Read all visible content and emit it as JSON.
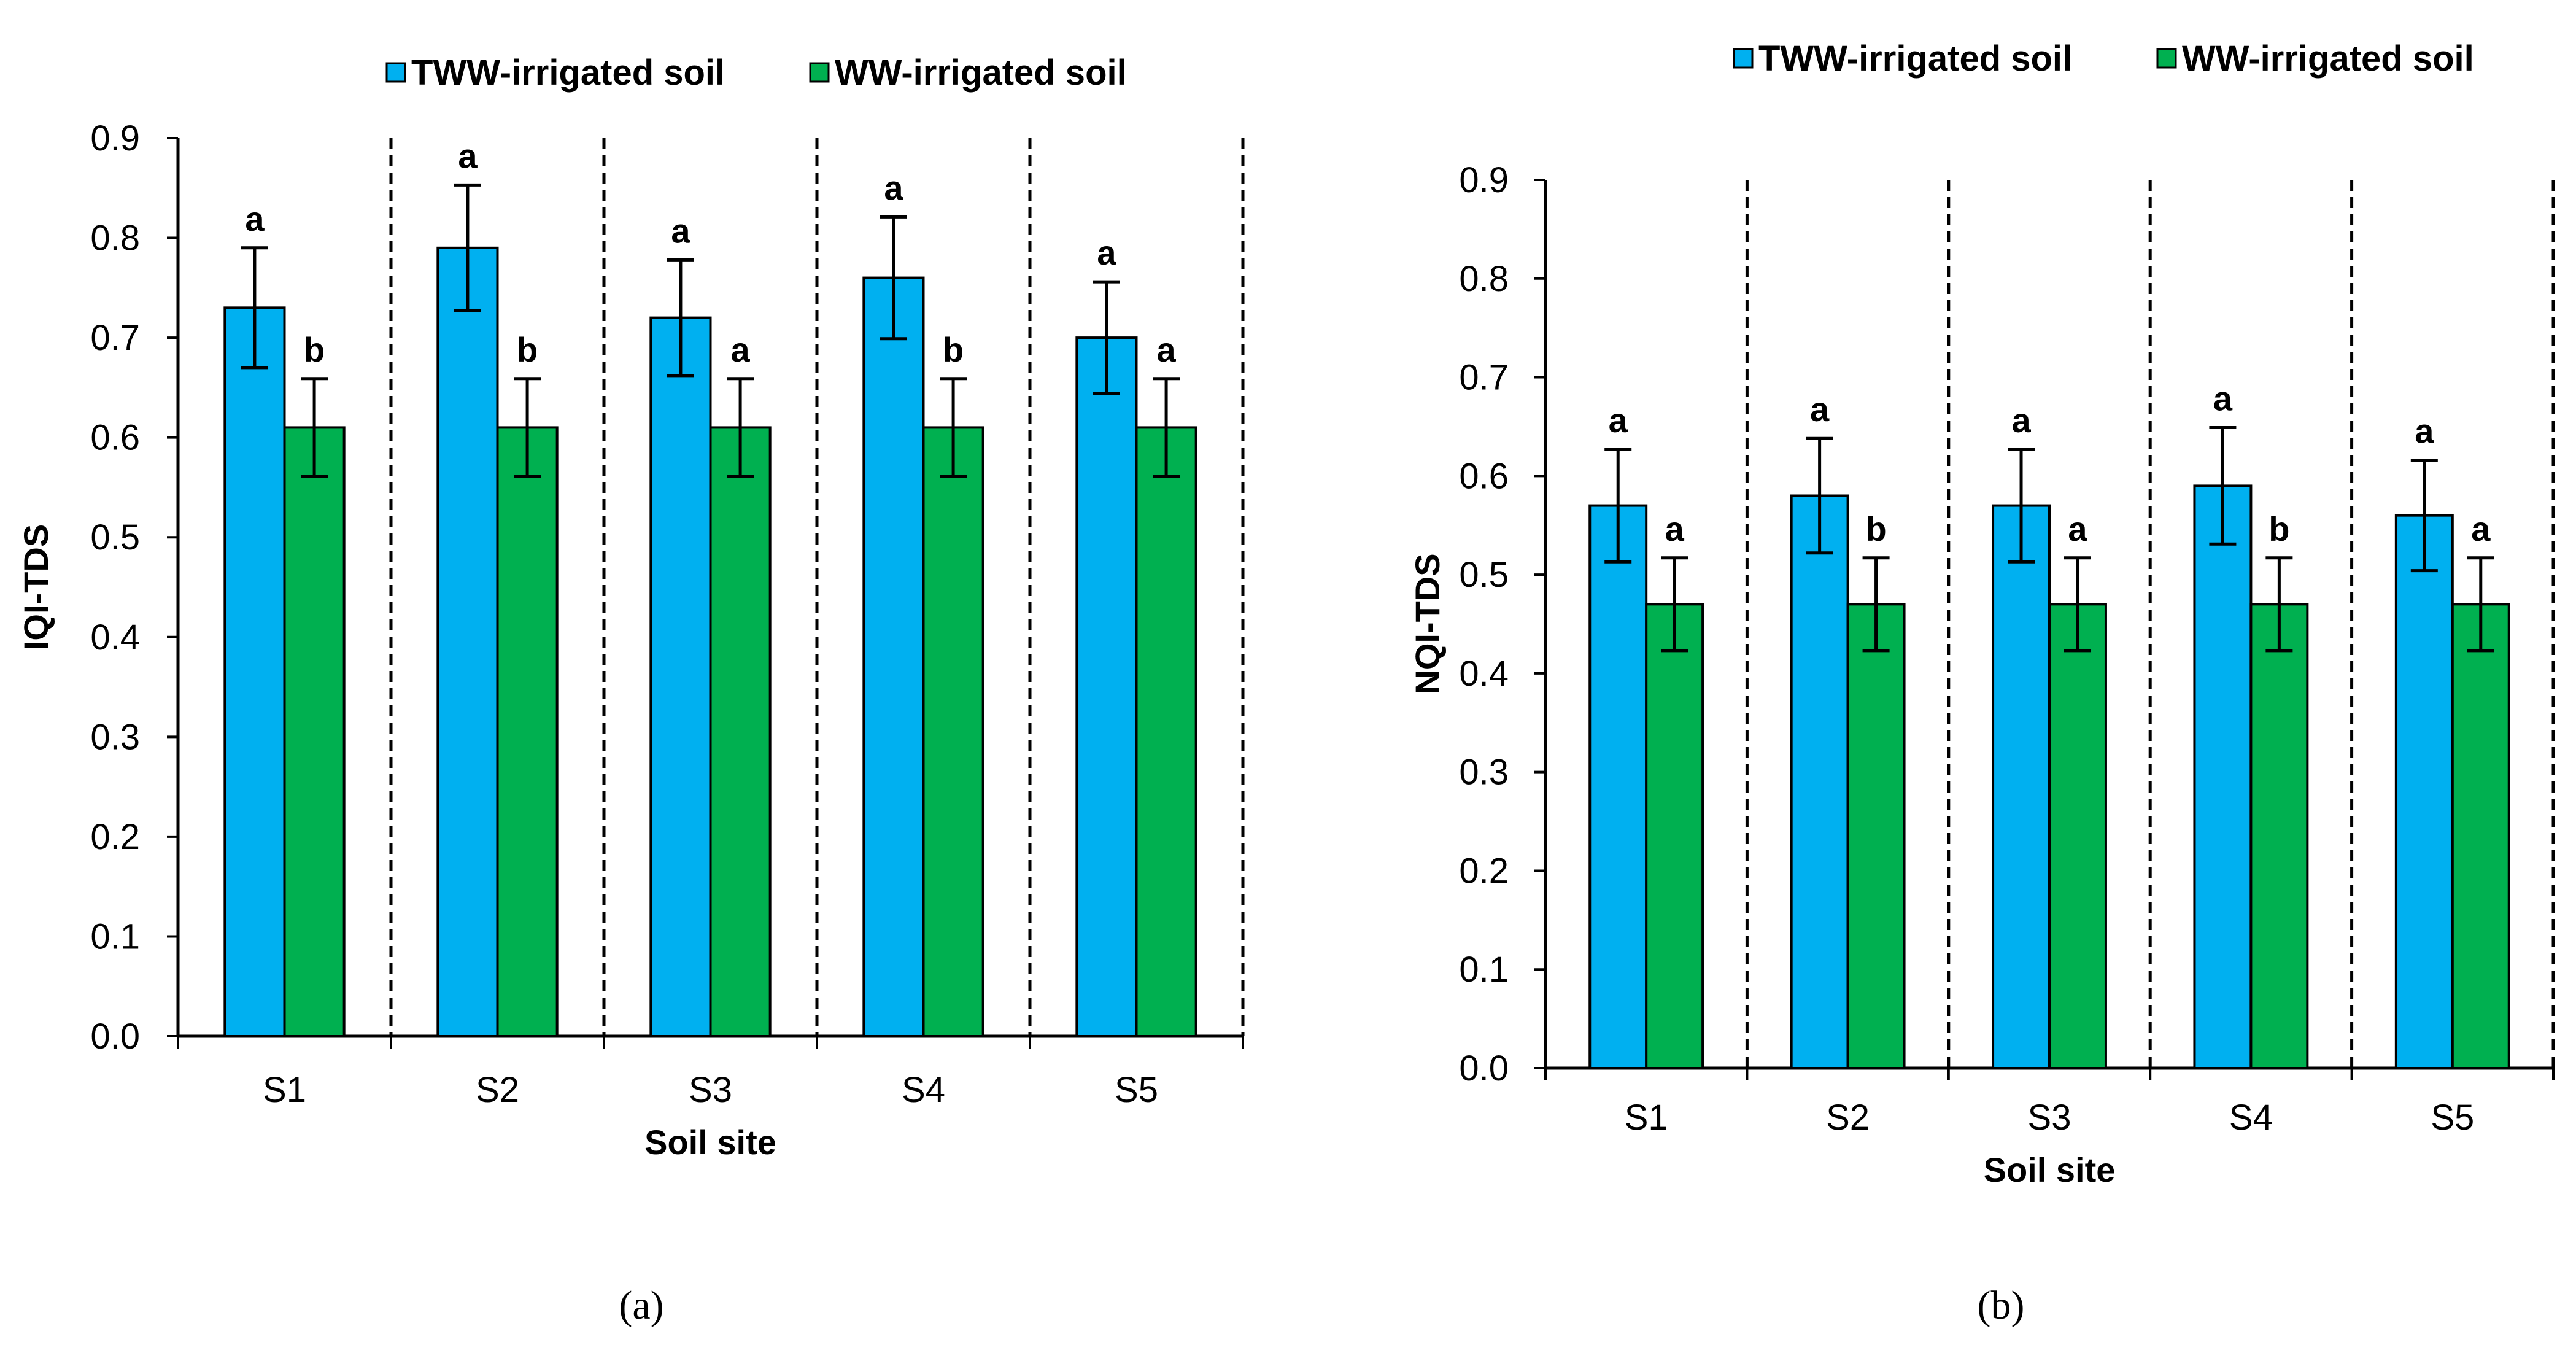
{
  "colors": {
    "tww": "#00B0F0",
    "ww": "#00B050",
    "axis": "#000000"
  },
  "chart_data": [
    {
      "type": "bar",
      "panel": "(a)",
      "title": "",
      "xlabel": "Soil site",
      "ylabel": "IQI-TDS",
      "ylim": [
        0,
        0.9
      ],
      "yticks": [
        "0.0",
        "0.1",
        "0.2",
        "0.3",
        "0.4",
        "0.5",
        "0.6",
        "0.7",
        "0.8",
        "0.9"
      ],
      "categories": [
        "S1",
        "S2",
        "S3",
        "S4",
        "S5"
      ],
      "legend": [
        "TWW-irrigated soil",
        "WW-irrigated soil"
      ],
      "legend_position": "top",
      "series": [
        {
          "name": "TWW-irrigated soil",
          "values": [
            0.73,
            0.79,
            0.72,
            0.76,
            0.7
          ],
          "errors": [
            0.06,
            0.063,
            0.058,
            0.061,
            0.056
          ],
          "letters": [
            "a",
            "a",
            "a",
            "a",
            "a"
          ]
        },
        {
          "name": "WW-irrigated soil",
          "values": [
            0.61,
            0.61,
            0.61,
            0.61,
            0.61
          ],
          "errors": [
            0.049,
            0.049,
            0.049,
            0.049,
            0.049
          ],
          "letters": [
            "b",
            "b",
            "a",
            "b",
            "a"
          ]
        }
      ]
    },
    {
      "type": "bar",
      "panel": "(b)",
      "title": "",
      "xlabel": "Soil site",
      "ylabel": "NQI-TDS",
      "ylim": [
        0,
        0.9
      ],
      "yticks": [
        "0.0",
        "0.1",
        "0.2",
        "0.3",
        "0.4",
        "0.5",
        "0.6",
        "0.7",
        "0.8",
        "0.9"
      ],
      "categories": [
        "S1",
        "S2",
        "S3",
        "S4",
        "S5"
      ],
      "legend": [
        "TWW-irrigated soil",
        "WW-irrigated soil"
      ],
      "legend_position": "top",
      "series": [
        {
          "name": "TWW-irrigated soil",
          "values": [
            0.57,
            0.58,
            0.57,
            0.59,
            0.56
          ],
          "errors": [
            0.057,
            0.058,
            0.057,
            0.059,
            0.056
          ],
          "letters": [
            "a",
            "a",
            "a",
            "a",
            "a"
          ]
        },
        {
          "name": "WW-irrigated soil",
          "values": [
            0.47,
            0.47,
            0.47,
            0.47,
            0.47
          ],
          "errors": [
            0.047,
            0.047,
            0.047,
            0.047,
            0.047
          ],
          "letters": [
            "a",
            "b",
            "a",
            "b",
            "a"
          ]
        }
      ]
    }
  ]
}
